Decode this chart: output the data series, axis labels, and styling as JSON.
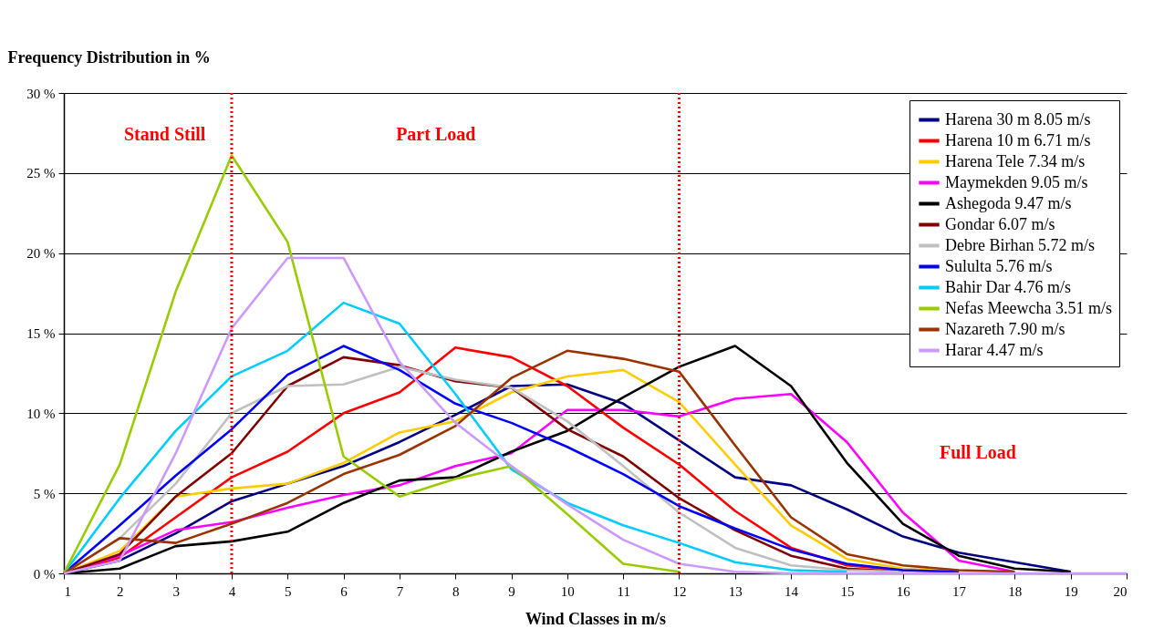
{
  "chart_data": {
    "type": "line",
    "ylabel": "Frequency Distribution in %",
    "xlabel": "Wind Classes in m/s",
    "x": [
      1,
      2,
      3,
      4,
      5,
      6,
      7,
      8,
      9,
      10,
      11,
      12,
      13,
      14,
      15,
      16,
      17,
      18,
      19,
      20
    ],
    "xlim": [
      1,
      20
    ],
    "xticks": [
      1,
      2,
      3,
      4,
      5,
      6,
      7,
      8,
      9,
      10,
      11,
      12,
      13,
      14,
      15,
      16,
      17,
      18,
      19,
      20
    ],
    "ylim": [
      0,
      30
    ],
    "yticks": [
      {
        "value": 0,
        "label": "0 %"
      },
      {
        "value": 5,
        "label": "5 %"
      },
      {
        "value": 10,
        "label": "10 %"
      },
      {
        "value": 15,
        "label": "15 %"
      },
      {
        "value": 20,
        "label": "20 %"
      },
      {
        "value": 25,
        "label": "25 %"
      },
      {
        "value": 30,
        "label": "30 %"
      }
    ],
    "grid": "y",
    "legend": "top right",
    "line_style": "solid",
    "series": [
      {
        "name": "Harena 30 m 8.05 m/s",
        "color": "#000080",
        "values": [
          0,
          0.8,
          2.5,
          4.5,
          5.6,
          6.7,
          8.2,
          9.9,
          11.7,
          11.8,
          10.6,
          8.3,
          6.0,
          5.5,
          4.0,
          2.3,
          1.3,
          0.7,
          0.1,
          null
        ]
      },
      {
        "name": "Harena 10 m 6.71 m/s",
        "color": "#ff0000",
        "values": [
          0,
          1.0,
          3.5,
          6.0,
          7.6,
          10.0,
          11.3,
          14.1,
          13.5,
          11.7,
          9.1,
          6.8,
          3.9,
          1.6,
          0.5,
          0.2,
          0.1,
          null,
          null,
          null
        ]
      },
      {
        "name": "Harena Tele 7.34 m/s",
        "color": "#ffcc00",
        "values": [
          0,
          1.4,
          4.8,
          5.3,
          5.6,
          6.9,
          8.8,
          9.5,
          11.3,
          12.3,
          12.7,
          10.7,
          6.8,
          3.0,
          0.9,
          0.3,
          0.1,
          null,
          null,
          null
        ]
      },
      {
        "name": "Maymekden 9.05 m/s",
        "color": "#ff00ff",
        "values": [
          0,
          1.1,
          2.7,
          3.2,
          4.1,
          4.9,
          5.5,
          6.7,
          7.5,
          10.2,
          10.2,
          9.8,
          10.9,
          11.2,
          8.2,
          3.8,
          0.8,
          0.1,
          null,
          null
        ]
      },
      {
        "name": "Ashegoda 9.47 m/s",
        "color": "#000000",
        "values": [
          0,
          0.3,
          1.7,
          2.0,
          2.6,
          4.4,
          5.8,
          6.0,
          7.6,
          8.9,
          11.0,
          12.9,
          14.2,
          11.7,
          6.9,
          3.1,
          1.1,
          0.3,
          0.1,
          null
        ]
      },
      {
        "name": "Gondar 6.07 m/s",
        "color": "#800000",
        "values": [
          0,
          1.2,
          4.8,
          7.5,
          11.7,
          13.5,
          13.0,
          12.0,
          11.6,
          9.0,
          7.3,
          4.7,
          2.7,
          1.1,
          0.3,
          0.1,
          null,
          null,
          null,
          null
        ]
      },
      {
        "name": "Debre Birhan 5.72 m/s",
        "color": "#c0c0c0",
        "values": [
          0,
          2.2,
          5.6,
          10.0,
          11.7,
          11.8,
          12.9,
          12.1,
          11.6,
          9.5,
          6.7,
          3.8,
          1.6,
          0.5,
          0.2,
          0.1,
          null,
          null,
          null,
          null
        ]
      },
      {
        "name": "Sululta 5.76 m/s",
        "color": "#0000ff",
        "values": [
          0,
          3.0,
          6.1,
          9.0,
          12.4,
          14.2,
          12.7,
          10.6,
          9.4,
          7.9,
          6.2,
          4.2,
          2.8,
          1.5,
          0.6,
          0.2,
          0.1,
          null,
          null,
          null
        ]
      },
      {
        "name": "Bahir Dar 4.76 m/s",
        "color": "#00ccff",
        "values": [
          0,
          4.7,
          8.9,
          12.3,
          13.9,
          16.9,
          15.6,
          11.2,
          6.5,
          4.4,
          3.0,
          1.9,
          0.7,
          0.2,
          0.1,
          null,
          null,
          null,
          null,
          null
        ]
      },
      {
        "name": "Nefas Meewcha 3.51 m/s",
        "color": "#99cc00",
        "values": [
          0,
          6.8,
          17.6,
          26.1,
          20.7,
          7.3,
          4.8,
          5.9,
          6.7,
          3.7,
          0.6,
          0.1,
          null,
          null,
          null,
          null,
          null,
          null,
          null,
          null
        ]
      },
      {
        "name": "Nazareth 7.90 m/s",
        "color": "#993300",
        "values": [
          0,
          2.2,
          1.9,
          3.1,
          4.4,
          6.2,
          7.4,
          9.2,
          12.2,
          13.9,
          13.4,
          12.6,
          8.0,
          3.5,
          1.2,
          0.5,
          0.2,
          0.1,
          null,
          null
        ]
      },
      {
        "name": "Harar 4.47 m/s",
        "color": "#cc99ff",
        "values": [
          0,
          0.8,
          7.5,
          15.3,
          19.7,
          19.7,
          13.2,
          9.4,
          6.7,
          4.3,
          2.1,
          0.6,
          0.1,
          0,
          0,
          0,
          0,
          0,
          0,
          0
        ]
      }
    ],
    "ref_lines": [
      {
        "axis": "x",
        "value": 4,
        "color": "#ff0000",
        "line_style": "dotted"
      },
      {
        "axis": "x",
        "value": 12,
        "color": "#ff0000",
        "line_style": "dotted"
      }
    ],
    "annotations": [
      "Stand Still",
      "Part Load",
      "Full Load"
    ]
  }
}
